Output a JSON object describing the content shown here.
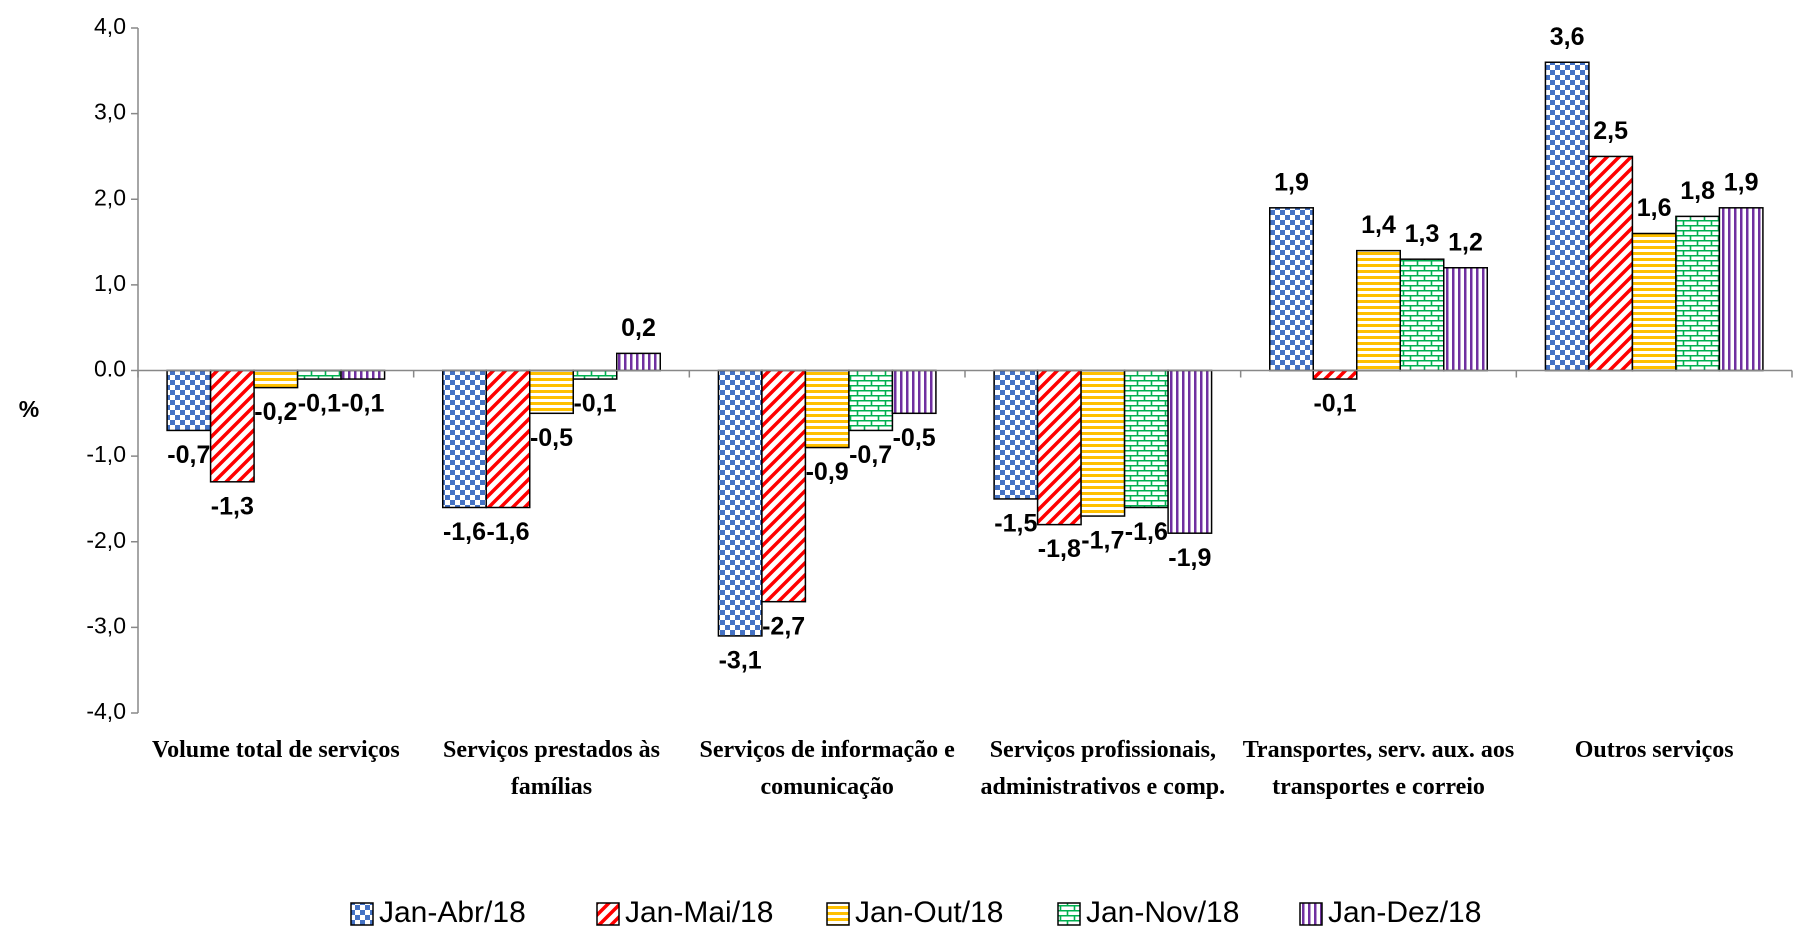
{
  "chart_data": {
    "type": "bar",
    "y_label": "%",
    "categories": [
      "Volume total de serviços",
      "Serviços prestados às famílias",
      "Serviços de informação e comunicação",
      "Serviços profissionais, administrativos e comp.",
      "Transportes, serv. aux. aos transportes e correio",
      "Outros serviços"
    ],
    "series": [
      {
        "name": "Jan-Abr/18",
        "color": "#4472c4",
        "pattern": "checker",
        "values": [
          -0.7,
          -1.6,
          -3.1,
          -1.5,
          1.9,
          3.6
        ],
        "value_labels": [
          "-0,7",
          "-1,6",
          "-3,1",
          "-1,5",
          "1,9",
          "3,6"
        ]
      },
      {
        "name": "Jan-Mai/18",
        "color": "#ff0000",
        "pattern": "diagonal",
        "values": [
          -1.3,
          -1.6,
          -2.7,
          -1.8,
          -0.1,
          2.5
        ],
        "value_labels": [
          "-1,3",
          "-1,6",
          "-2,7",
          "-1,8",
          "-0,1",
          "2,5"
        ]
      },
      {
        "name": "Jan-Out/18",
        "color": "#ffc000",
        "pattern": "horizontal",
        "values": [
          -0.2,
          -0.5,
          -0.9,
          -1.7,
          1.4,
          1.6
        ],
        "value_labels": [
          "-0,2",
          "-0,5",
          "-0,9",
          "-1,7",
          "1,4",
          "1,6"
        ]
      },
      {
        "name": "Jan-Nov/18",
        "color": "#00b050",
        "pattern": "brick",
        "values": [
          -0.1,
          -0.1,
          -0.7,
          -1.6,
          1.3,
          1.8
        ],
        "value_labels": [
          "-0,1",
          "-0,1",
          "-0,7",
          "-1,6",
          "1,3",
          "1,8"
        ]
      },
      {
        "name": "Jan-Dez/18",
        "color": "#7030a0",
        "pattern": "vertical",
        "values": [
          -0.1,
          0.2,
          -0.5,
          -1.9,
          1.2,
          1.9
        ],
        "value_labels": [
          "-0,1",
          "0,2",
          "-0,5",
          "-1,9",
          "1,2",
          "1,9"
        ]
      }
    ],
    "ylim": [
      -4,
      4
    ],
    "yticks": [
      {
        "value": -4,
        "label": "-4,0"
      },
      {
        "value": -3,
        "label": "-3,0"
      },
      {
        "value": -2,
        "label": "-2,0"
      },
      {
        "value": -1,
        "label": "-1,0"
      },
      {
        "value": 0,
        "label": "0.0"
      },
      {
        "value": 1,
        "label": "1,0"
      },
      {
        "value": 2,
        "label": "2,0"
      },
      {
        "value": 3,
        "label": "3,0"
      },
      {
        "value": 4,
        "label": "4,0"
      }
    ],
    "legend": "bottom"
  }
}
